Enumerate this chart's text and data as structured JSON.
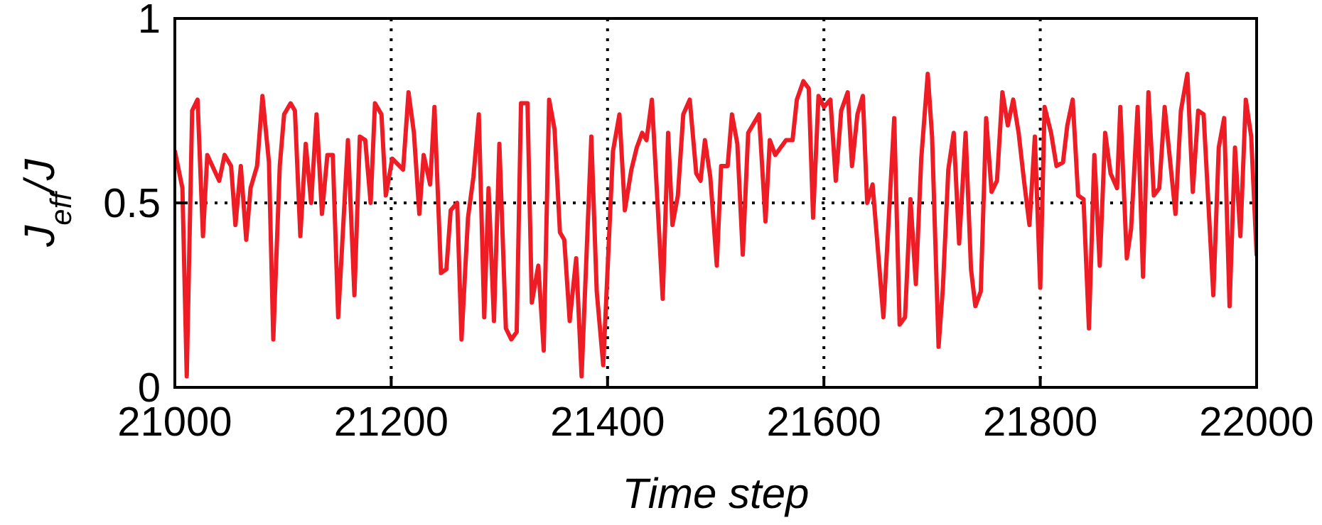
{
  "chart_data": {
    "type": "line",
    "xlabel": "Time step",
    "ylabel": "J$_{eff}$/J",
    "xlim": [
      21000,
      22000
    ],
    "ylim": [
      0,
      1
    ],
    "xticks": [
      21000,
      21200,
      21400,
      21600,
      21800,
      22000
    ],
    "yticks": [
      0,
      0.5,
      1
    ],
    "grid": true,
    "line_style": "solid",
    "series": [
      {
        "color": "#ee1c25",
        "x": [
          21000,
          21007,
          21011,
          21016,
          21021,
          21026,
          21030,
          21041,
          21046,
          21052,
          21056,
          21061,
          21066,
          21070,
          21076,
          21081,
          21087,
          21091,
          21097,
          21101,
          21107,
          21111,
          21116,
          21121,
          21126,
          21131,
          21136,
          21141,
          21146,
          21151,
          21160,
          21166,
          21171,
          21176,
          21181,
          21185,
          21191,
          21195,
          21201,
          21211,
          21216,
          21221,
          21226,
          21230,
          21236,
          21240,
          21246,
          21251,
          21255,
          21261,
          21265,
          21271,
          21276,
          21281,
          21286,
          21290,
          21295,
          21300,
          21306,
          21311,
          21316,
          21320,
          21326,
          21330,
          21336,
          21341,
          21346,
          21351,
          21356,
          21360,
          21365,
          21371,
          21376,
          21385,
          21390,
          21396,
          21405,
          21411,
          21416,
          21422,
          21427,
          21432,
          21436,
          21441,
          21451,
          21456,
          21460,
          21465,
          21470,
          21476,
          21482,
          21486,
          21490,
          21495,
          21501,
          21505,
          21511,
          21515,
          21520,
          21525,
          21530,
          21540,
          21546,
          21550,
          21555,
          21560,
          21565,
          21571,
          21575,
          21581,
          21586,
          21590,
          21595,
          21600,
          21606,
          21611,
          21616,
          21622,
          21626,
          21631,
          21636,
          21640,
          21645,
          21655,
          21665,
          21670,
          21675,
          21680,
          21685,
          21690,
          21696,
          21700,
          21706,
          21710,
          21715,
          21720,
          21725,
          21731,
          21736,
          21740,
          21745,
          21750,
          21755,
          21760,
          21765,
          21770,
          21775,
          21780,
          21785,
          21790,
          21795,
          21800,
          21804,
          21810,
          21815,
          21821,
          21825,
          21830,
          21835,
          21840,
          21845,
          21850,
          21855,
          21860,
          21865,
          21871,
          21874,
          21880,
          21884,
          21890,
          21895,
          21900,
          21905,
          21910,
          21915,
          21925,
          21930,
          21936,
          21941,
          21946,
          21951,
          21960,
          21965,
          21970,
          21975,
          21980,
          21985,
          21990,
          21995,
          22000
        ],
        "values": [
          0.64,
          0.54,
          0.03,
          0.75,
          0.78,
          0.41,
          0.63,
          0.56,
          0.63,
          0.6,
          0.44,
          0.6,
          0.4,
          0.54,
          0.6,
          0.79,
          0.61,
          0.13,
          0.6,
          0.74,
          0.77,
          0.75,
          0.41,
          0.66,
          0.5,
          0.74,
          0.47,
          0.63,
          0.63,
          0.19,
          0.67,
          0.25,
          0.68,
          0.67,
          0.5,
          0.77,
          0.74,
          0.52,
          0.62,
          0.59,
          0.8,
          0.69,
          0.47,
          0.63,
          0.55,
          0.76,
          0.31,
          0.32,
          0.48,
          0.5,
          0.13,
          0.46,
          0.57,
          0.74,
          0.19,
          0.54,
          0.18,
          0.66,
          0.16,
          0.13,
          0.15,
          0.77,
          0.77,
          0.23,
          0.33,
          0.1,
          0.78,
          0.7,
          0.42,
          0.4,
          0.18,
          0.35,
          0.03,
          0.68,
          0.26,
          0.06,
          0.64,
          0.74,
          0.48,
          0.59,
          0.65,
          0.69,
          0.67,
          0.78,
          0.24,
          0.69,
          0.44,
          0.52,
          0.74,
          0.78,
          0.58,
          0.56,
          0.67,
          0.57,
          0.33,
          0.6,
          0.6,
          0.74,
          0.66,
          0.36,
          0.69,
          0.74,
          0.45,
          0.67,
          0.63,
          0.65,
          0.67,
          0.67,
          0.78,
          0.83,
          0.81,
          0.46,
          0.79,
          0.76,
          0.78,
          0.56,
          0.75,
          0.8,
          0.6,
          0.74,
          0.79,
          0.5,
          0.55,
          0.19,
          0.73,
          0.17,
          0.19,
          0.51,
          0.28,
          0.62,
          0.85,
          0.68,
          0.11,
          0.27,
          0.59,
          0.69,
          0.39,
          0.69,
          0.32,
          0.22,
          0.26,
          0.73,
          0.53,
          0.56,
          0.8,
          0.71,
          0.78,
          0.69,
          0.56,
          0.44,
          0.68,
          0.27,
          0.76,
          0.69,
          0.6,
          0.61,
          0.71,
          0.78,
          0.52,
          0.51,
          0.16,
          0.63,
          0.33,
          0.69,
          0.58,
          0.54,
          0.76,
          0.35,
          0.43,
          0.76,
          0.3,
          0.8,
          0.52,
          0.54,
          0.76,
          0.47,
          0.75,
          0.85,
          0.53,
          0.75,
          0.74,
          0.25,
          0.65,
          0.73,
          0.22,
          0.65,
          0.41,
          0.78,
          0.68,
          0.36
        ]
      }
    ]
  }
}
